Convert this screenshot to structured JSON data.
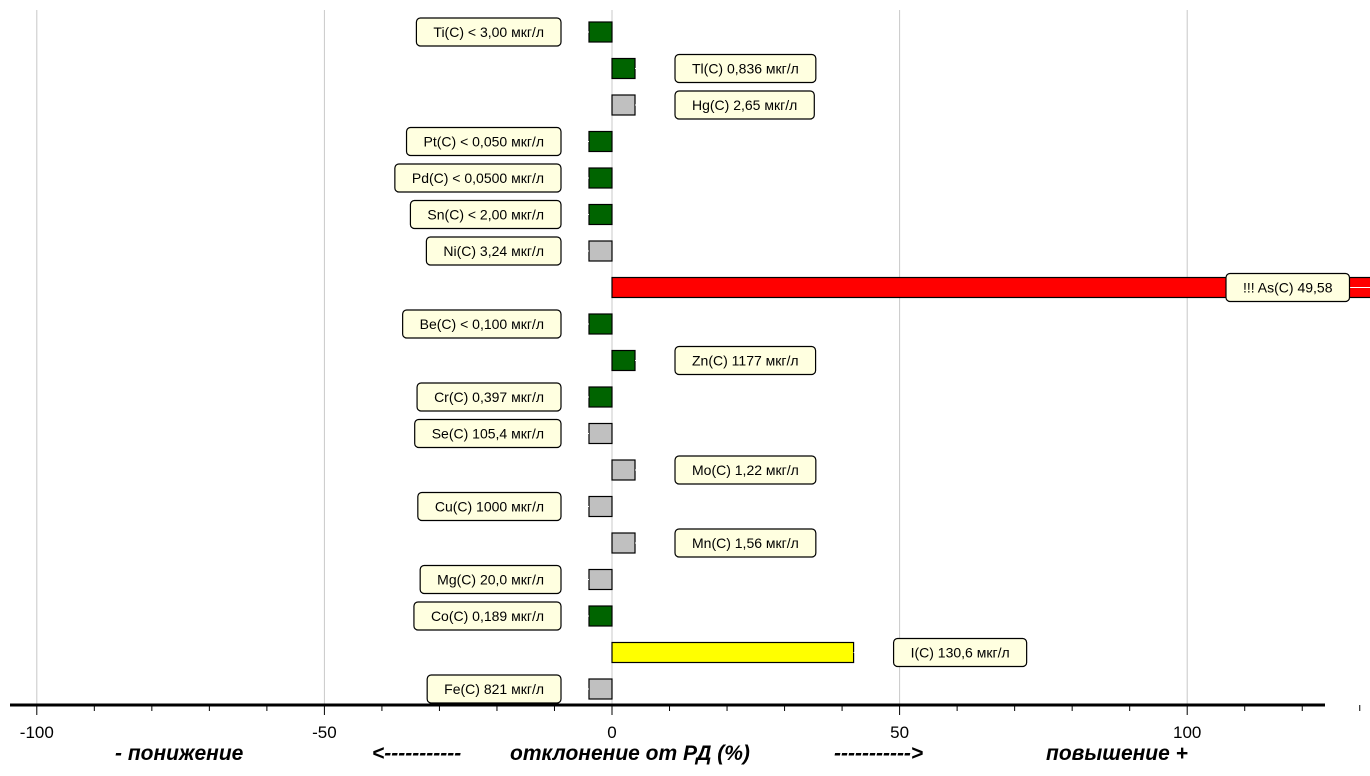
{
  "chart_data": {
    "type": "bar",
    "orientation": "horizontal",
    "xlim": [
      -200,
      200
    ],
    "x_ticks": [
      -200,
      -150,
      -100,
      -50,
      0,
      50,
      100,
      150,
      200
    ],
    "grid": true,
    "colors": {
      "green": "#006400",
      "gray": "#c0c0c0",
      "red": "#ff0000",
      "yellow": "#ffff00",
      "label_bg": "#ffffe0"
    },
    "bars": [
      {
        "label": "Ti(C) < 3,00 мкг/л",
        "value": -4,
        "color": "green"
      },
      {
        "label": "Tl(C) 0,836 мкг/л",
        "value": 4,
        "color": "green"
      },
      {
        "label": "Hg(C) 2,65 мкг/л",
        "value": 4,
        "color": "gray"
      },
      {
        "label": "Pt(C) < 0,050 мкг/л",
        "value": -4,
        "color": "green"
      },
      {
        "label": "Pd(C) < 0,0500 мкг/л",
        "value": -4,
        "color": "green"
      },
      {
        "label": "Sn(C) < 2,00 мкг/л",
        "value": -4,
        "color": "green"
      },
      {
        "label": "Ni(C) 3,24 мкг/л",
        "value": -4,
        "color": "gray"
      },
      {
        "label": "!!! As(C) 49,58",
        "value": 200,
        "color": "red"
      },
      {
        "label": "Be(C) < 0,100 мкг/л",
        "value": -4,
        "color": "green"
      },
      {
        "label": "Zn(C) 1177 мкг/л",
        "value": 4,
        "color": "green"
      },
      {
        "label": "Cr(C) 0,397 мкг/л",
        "value": -4,
        "color": "green"
      },
      {
        "label": "Se(C) 105,4 мкг/л",
        "value": -4,
        "color": "gray"
      },
      {
        "label": "Mo(C) 1,22 мкг/л",
        "value": 4,
        "color": "gray"
      },
      {
        "label": "Cu(C) 1000 мкг/л",
        "value": -4,
        "color": "gray"
      },
      {
        "label": "Mn(C) 1,56 мкг/л",
        "value": 4,
        "color": "gray"
      },
      {
        "label": "Mg(C) 20,0 мкг/л",
        "value": -4,
        "color": "gray"
      },
      {
        "label": "Co(C) 0,189 мкг/л",
        "value": -4,
        "color": "green"
      },
      {
        "label": "I(C) 130,6 мкг/л",
        "value": 42,
        "color": "yellow"
      },
      {
        "label": "Fe(C) 821 мкг/л",
        "value": -4,
        "color": "gray"
      }
    ]
  },
  "footer": {
    "left": "- понижение",
    "arrow_left": "<-----------",
    "center": "отклонение от РД (%)",
    "arrow_right": "----------->",
    "right": "повышение +"
  }
}
